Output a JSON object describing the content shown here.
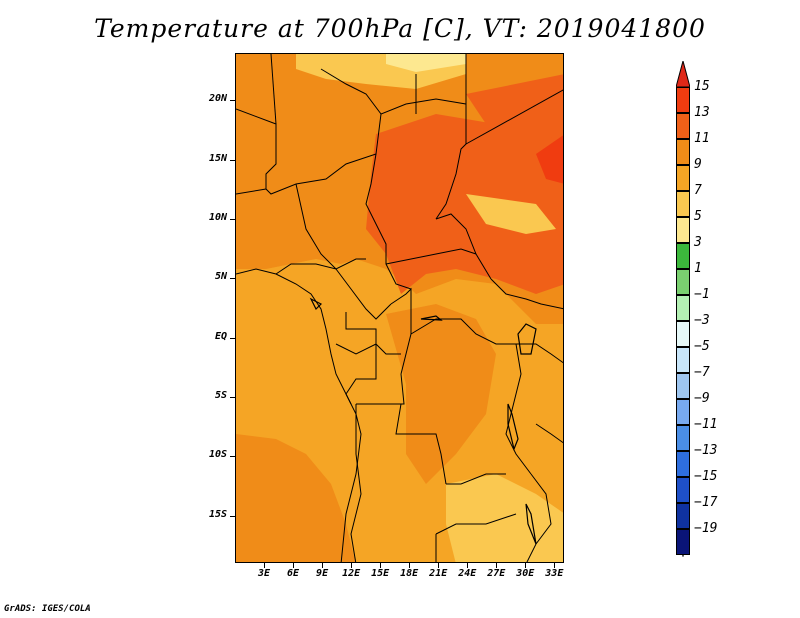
{
  "title": "Temperature at 700hPa [C], VT: 2019041800",
  "footer": "GrADS: IGES/COLA",
  "map": {
    "projection": "lat-lon",
    "region": "Central Africa",
    "lon_range": [
      0,
      34
    ],
    "lat_range": [
      -19,
      24
    ],
    "field": "Temperature at 700hPa",
    "units": "C",
    "valid_time": "2019041800"
  },
  "lat_ticks": [
    {
      "label": "20N",
      "value": 20
    },
    {
      "label": "15N",
      "value": 15
    },
    {
      "label": "10N",
      "value": 10
    },
    {
      "label": "5N",
      "value": 5
    },
    {
      "label": "EQ",
      "value": 0
    },
    {
      "label": "5S",
      "value": -5
    },
    {
      "label": "10S",
      "value": -10
    },
    {
      "label": "15S",
      "value": -15
    }
  ],
  "lon_ticks": [
    {
      "label": "3E",
      "value": 3
    },
    {
      "label": "6E",
      "value": 6
    },
    {
      "label": "9E",
      "value": 9
    },
    {
      "label": "12E",
      "value": 12
    },
    {
      "label": "15E",
      "value": 15
    },
    {
      "label": "18E",
      "value": 18
    },
    {
      "label": "21E",
      "value": 21
    },
    {
      "label": "24E",
      "value": 24
    },
    {
      "label": "27E",
      "value": 27
    },
    {
      "label": "30E",
      "value": 30
    },
    {
      "label": "33E",
      "value": 33
    }
  ],
  "colorbar": {
    "labels": [
      "15",
      "13",
      "11",
      "9",
      "7",
      "5",
      "3",
      "1",
      "−1",
      "−3",
      "−5",
      "−7",
      "−9",
      "−11",
      "−13",
      "−15",
      "−17",
      "−19"
    ],
    "top_color": "#e02818",
    "bottom_color": "#e0e0f8",
    "colors": [
      "#f03c10",
      "#f06018",
      "#f08c18",
      "#f5a525",
      "#fac850",
      "#fde890",
      "#3cb83c",
      "#7ad070",
      "#b4f0b4",
      "#e6f8f8",
      "#c8e6fa",
      "#9ec6f0",
      "#78aaf0",
      "#4a8ee6",
      "#2e6ede",
      "#1e50c8",
      "#0f32a0",
      "#0a1478"
    ]
  },
  "palette": {
    "t13": "#f06018",
    "t11": "#f08c18",
    "t9": "#f5a525",
    "t7": "#fac850",
    "t5": "#fde890",
    "t15": "#f03c10"
  }
}
